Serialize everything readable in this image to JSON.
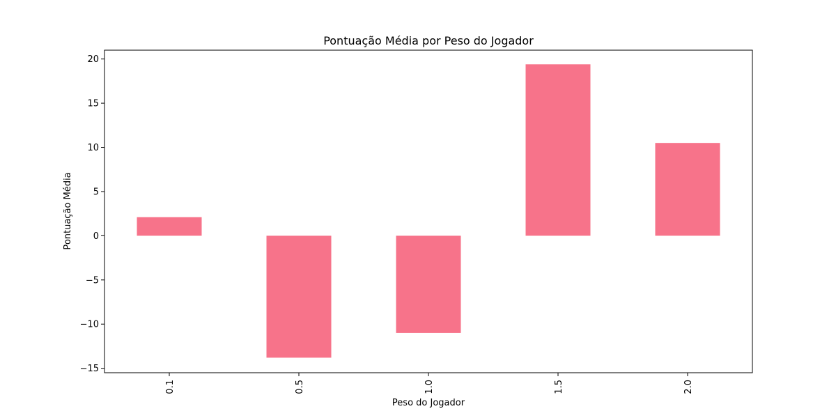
{
  "chart_data": {
    "type": "bar",
    "title": "Pontuação Média por Peso do Jogador",
    "xlabel": "Peso do Jogador",
    "ylabel": "Pontuação Média",
    "categories": [
      "0.1",
      "0.5",
      "1.0",
      "1.5",
      "2.0"
    ],
    "values": [
      2.1,
      -13.8,
      -11.0,
      19.4,
      10.5
    ],
    "ylim": [
      -15.5,
      21.0
    ],
    "yticks": [
      20,
      15,
      10,
      5,
      0,
      -5,
      -10,
      -15
    ],
    "ytick_labels": [
      "20",
      "15",
      "10",
      "5",
      "0",
      "−5",
      "−10",
      "−15"
    ],
    "bar_color": "#f7738a",
    "grid": false,
    "legend": "none"
  }
}
